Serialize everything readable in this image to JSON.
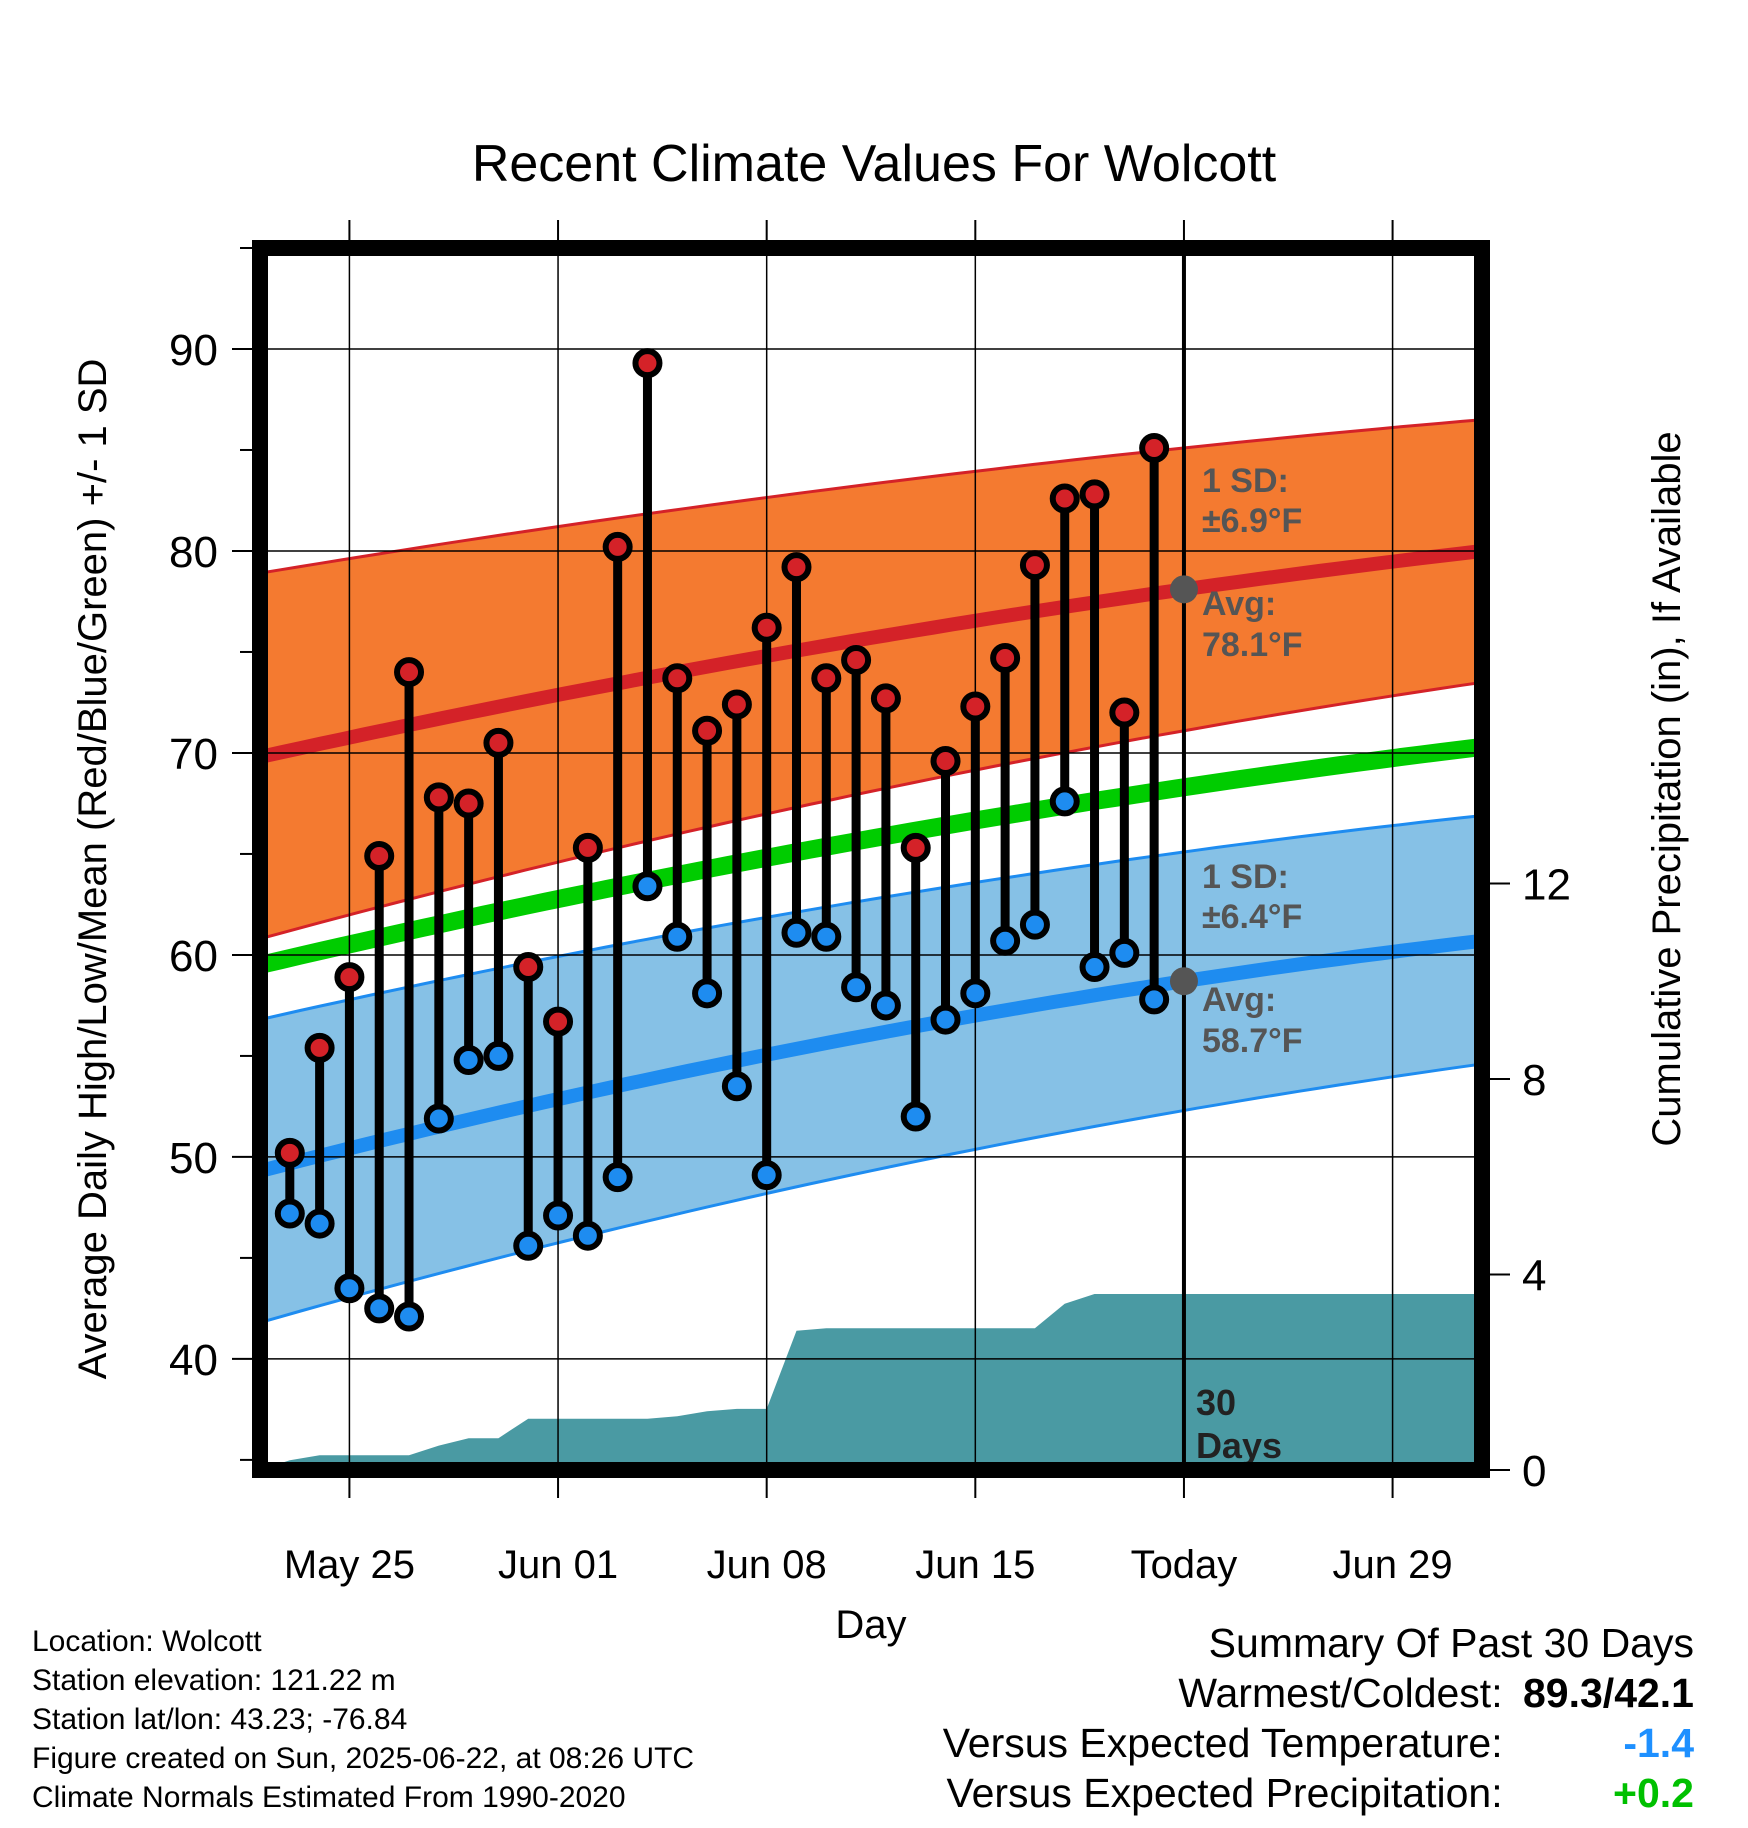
{
  "title": "Recent Climate Values For Wolcott",
  "chart_data": {
    "type": "line",
    "title": "Recent Climate Values For Wolcott",
    "xlabel": "Day",
    "ylabel": "Average Daily High/Low/Mean (Red/Blue/Green) +/- 1 SD",
    "y2label": "Cumulative Precipitation (in), If Available",
    "ylim": [
      34.5,
      95
    ],
    "y2lim": [
      0,
      25
    ],
    "yticks": [
      40,
      50,
      60,
      70,
      80,
      90
    ],
    "y2ticks": [
      0,
      4,
      8,
      12
    ],
    "xlim": [
      "2025-05-22",
      "2025-07-02"
    ],
    "xticks": [
      {
        "date": "2025-05-25",
        "label": "May 25"
      },
      {
        "date": "2025-06-01",
        "label": "Jun 01"
      },
      {
        "date": "2025-06-08",
        "label": "Jun 08"
      },
      {
        "date": "2025-06-15",
        "label": "Jun 15"
      },
      {
        "date": "2025-06-22",
        "label": "Today"
      },
      {
        "date": "2025-06-29",
        "label": "Jun 29"
      }
    ],
    "today": "2025-06-22",
    "today_label": "30\nDays",
    "grid": true,
    "normals": {
      "x": [
        "2025-05-22",
        "2025-06-22",
        "2025-07-02"
      ],
      "high_mean": [
        69.8,
        78.1,
        80.0
      ],
      "high_upper": [
        78.9,
        85.1,
        86.5
      ],
      "high_lower": [
        60.8,
        71.1,
        73.5
      ],
      "low_mean": [
        49.3,
        58.7,
        60.7
      ],
      "low_upper": [
        56.8,
        65.1,
        66.9
      ],
      "low_lower": [
        41.8,
        52.3,
        54.6
      ],
      "daily_mean": [
        59.5,
        68.3,
        70.3
      ]
    },
    "series": [
      {
        "name": "High",
        "x": [
          "2025-05-23",
          "2025-05-24",
          "2025-05-25",
          "2025-05-26",
          "2025-05-27",
          "2025-05-28",
          "2025-05-29",
          "2025-05-30",
          "2025-05-31",
          "2025-06-01",
          "2025-06-02",
          "2025-06-03",
          "2025-06-04",
          "2025-06-05",
          "2025-06-06",
          "2025-06-07",
          "2025-06-08",
          "2025-06-09",
          "2025-06-10",
          "2025-06-11",
          "2025-06-12",
          "2025-06-13",
          "2025-06-14",
          "2025-06-15",
          "2025-06-16",
          "2025-06-17",
          "2025-06-18",
          "2025-06-19",
          "2025-06-20",
          "2025-06-21"
        ],
        "values": [
          50.2,
          55.4,
          58.9,
          64.9,
          74.0,
          67.8,
          67.5,
          70.5,
          59.4,
          56.7,
          65.3,
          80.2,
          89.3,
          73.7,
          71.1,
          72.4,
          76.2,
          79.2,
          73.7,
          74.6,
          72.7,
          65.3,
          69.6,
          72.3,
          74.7,
          79.3,
          82.6,
          82.8,
          72.0,
          85.1
        ]
      },
      {
        "name": "Low",
        "x": [
          "2025-05-23",
          "2025-05-24",
          "2025-05-25",
          "2025-05-26",
          "2025-05-27",
          "2025-05-28",
          "2025-05-29",
          "2025-05-30",
          "2025-05-31",
          "2025-06-01",
          "2025-06-02",
          "2025-06-03",
          "2025-06-04",
          "2025-06-05",
          "2025-06-06",
          "2025-06-07",
          "2025-06-08",
          "2025-06-09",
          "2025-06-10",
          "2025-06-11",
          "2025-06-12",
          "2025-06-13",
          "2025-06-14",
          "2025-06-15",
          "2025-06-16",
          "2025-06-17",
          "2025-06-18",
          "2025-06-19",
          "2025-06-20",
          "2025-06-21"
        ],
        "values": [
          47.2,
          46.7,
          43.5,
          42.5,
          42.1,
          51.9,
          54.8,
          55.0,
          45.6,
          47.1,
          46.1,
          49.0,
          63.4,
          60.9,
          58.1,
          53.5,
          49.1,
          61.1,
          60.9,
          58.4,
          57.5,
          52.0,
          56.8,
          58.1,
          60.7,
          61.5,
          67.6,
          59.4,
          60.1,
          57.8
        ]
      }
    ],
    "precip": {
      "x": [
        "2025-05-22",
        "2025-05-23",
        "2025-05-24",
        "2025-05-25",
        "2025-05-26",
        "2025-05-27",
        "2025-05-28",
        "2025-05-29",
        "2025-05-30",
        "2025-05-31",
        "2025-06-01",
        "2025-06-02",
        "2025-06-03",
        "2025-06-04",
        "2025-06-05",
        "2025-06-06",
        "2025-06-07",
        "2025-06-08",
        "2025-06-09",
        "2025-06-10",
        "2025-06-11",
        "2025-06-12",
        "2025-06-13",
        "2025-06-14",
        "2025-06-15",
        "2025-06-16",
        "2025-06-17",
        "2025-06-18",
        "2025-06-19",
        "2025-06-20",
        "2025-06-21",
        "2025-07-02"
      ],
      "values": [
        0.0,
        0.2,
        0.3,
        0.3,
        0.3,
        0.3,
        0.5,
        0.65,
        0.65,
        1.05,
        1.05,
        1.05,
        1.05,
        1.05,
        1.1,
        1.2,
        1.25,
        1.25,
        2.85,
        2.9,
        2.9,
        2.9,
        2.9,
        2.9,
        2.9,
        2.9,
        2.9,
        3.4,
        3.6,
        3.6,
        3.6,
        3.6
      ]
    },
    "annotations": {
      "high_sd": "1 SD:",
      "high_sd_val": "±6.9°F",
      "high_avg": "Avg:",
      "high_avg_val": "78.1°F",
      "low_sd": "1 SD:",
      "low_sd_val": "±6.4°F",
      "low_avg": "Avg:",
      "low_avg_val": "58.7°F",
      "today_marker_line1": "30",
      "today_marker_line2": "Days"
    },
    "colors": {
      "high_band": "#f47a30",
      "high_line": "#d42228",
      "low_band": "#86c1e6",
      "low_line": "#1e8cf0",
      "mean_line": "#00cc00",
      "precip": "#4a9aa3",
      "high_dot": "#d42228",
      "low_dot": "#1e8cf0",
      "annotation_text": "#555555"
    }
  },
  "footer": {
    "location": "Location: Wolcott",
    "elevation": "Station elevation: 121.22 m",
    "latlon": "Station lat/lon: 43.23; -76.84",
    "created": "Figure created on Sun, 2025-06-22, at 08:26 UTC",
    "normals": "Climate Normals Estimated From 1990-2020"
  },
  "summary": {
    "heading": "Summary Of Past 30 Days",
    "warmest_label": "Warmest/Coldest:",
    "warmest_value": "89.3/42.1",
    "temp_label": "Versus Expected Temperature:",
    "temp_value": "-1.4",
    "precip_label": "Versus Expected Precipitation:",
    "precip_value": "+0.2"
  }
}
